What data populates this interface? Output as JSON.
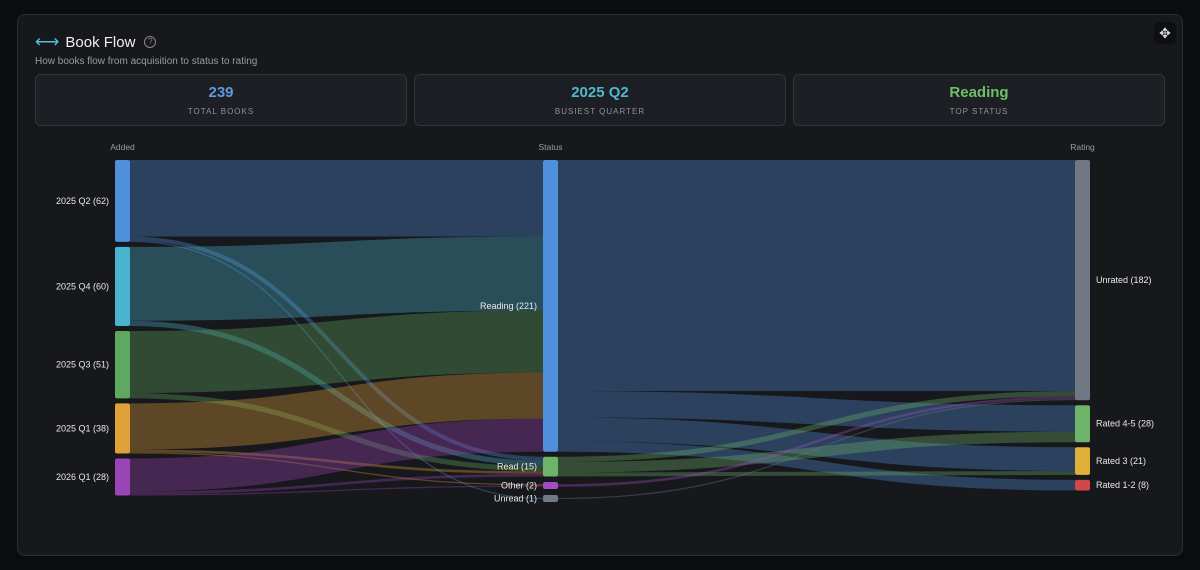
{
  "header": {
    "title": "Book Flow",
    "subtitle": "How books flow from acquisition to status to rating",
    "help_icon": "?",
    "move_icon": "✥"
  },
  "stats": [
    {
      "value": "239",
      "label": "TOTAL BOOKS",
      "color": "#5b9be0"
    },
    {
      "value": "2025 Q2",
      "label": "BUSIEST QUARTER",
      "color": "#4fb8cc"
    },
    {
      "value": "Reading",
      "label": "TOP STATUS",
      "color": "#6fbf6a"
    }
  ],
  "chart_data": {
    "type": "sankey",
    "columns": [
      "Added",
      "Status",
      "Rating"
    ],
    "nodes": [
      {
        "id": "q2",
        "label": "2025 Q2 (62)",
        "col": 0,
        "color": "#4f8fdb"
      },
      {
        "id": "q4",
        "label": "2025 Q4 (60)",
        "col": 0,
        "color": "#4ab4cf"
      },
      {
        "id": "q3",
        "label": "2025 Q3 (51)",
        "col": 0,
        "color": "#5fa862"
      },
      {
        "id": "q1",
        "label": "2025 Q1 (38)",
        "col": 0,
        "color": "#e0a03a"
      },
      {
        "id": "q26",
        "label": "2026 Q1 (28)",
        "col": 0,
        "color": "#9a45b5"
      },
      {
        "id": "reading",
        "label": "Reading (221)",
        "col": 1,
        "color": "#4f8fdb"
      },
      {
        "id": "read",
        "label": "Read (15)",
        "col": 1,
        "color": "#6db36a"
      },
      {
        "id": "other",
        "label": "Other (2)",
        "col": 1,
        "color": "#a24cc0"
      },
      {
        "id": "unread",
        "label": "Unread (1)",
        "col": 1,
        "color": "#707a86"
      },
      {
        "id": "unrated",
        "label": "Unrated (182)",
        "col": 2,
        "color": "#6f7884"
      },
      {
        "id": "r45",
        "label": "Rated 4-5 (28)",
        "col": 2,
        "color": "#6db36a"
      },
      {
        "id": "r3",
        "label": "Rated 3 (21)",
        "col": 2,
        "color": "#e0b03a"
      },
      {
        "id": "r12",
        "label": "Rated 1-2 (8)",
        "col": 2,
        "color": "#d04848"
      }
    ],
    "links": [
      [
        "q2",
        "reading",
        58
      ],
      [
        "q2",
        "read",
        3
      ],
      [
        "q2",
        "unread",
        1
      ],
      [
        "q4",
        "reading",
        56
      ],
      [
        "q4",
        "read",
        4
      ],
      [
        "q3",
        "reading",
        47
      ],
      [
        "q3",
        "read",
        4
      ],
      [
        "q1",
        "reading",
        35
      ],
      [
        "q1",
        "read",
        2
      ],
      [
        "q1",
        "other",
        1
      ],
      [
        "q26",
        "reading",
        25
      ],
      [
        "q26",
        "read",
        2
      ],
      [
        "q26",
        "other",
        1
      ],
      [
        "reading",
        "unrated",
        175
      ],
      [
        "reading",
        "r45",
        20
      ],
      [
        "reading",
        "r3",
        18
      ],
      [
        "reading",
        "r12",
        8
      ],
      [
        "read",
        "unrated",
        4
      ],
      [
        "read",
        "r45",
        8
      ],
      [
        "read",
        "r3",
        3
      ],
      [
        "other",
        "unrated",
        2
      ],
      [
        "unread",
        "unrated",
        1
      ]
    ]
  }
}
